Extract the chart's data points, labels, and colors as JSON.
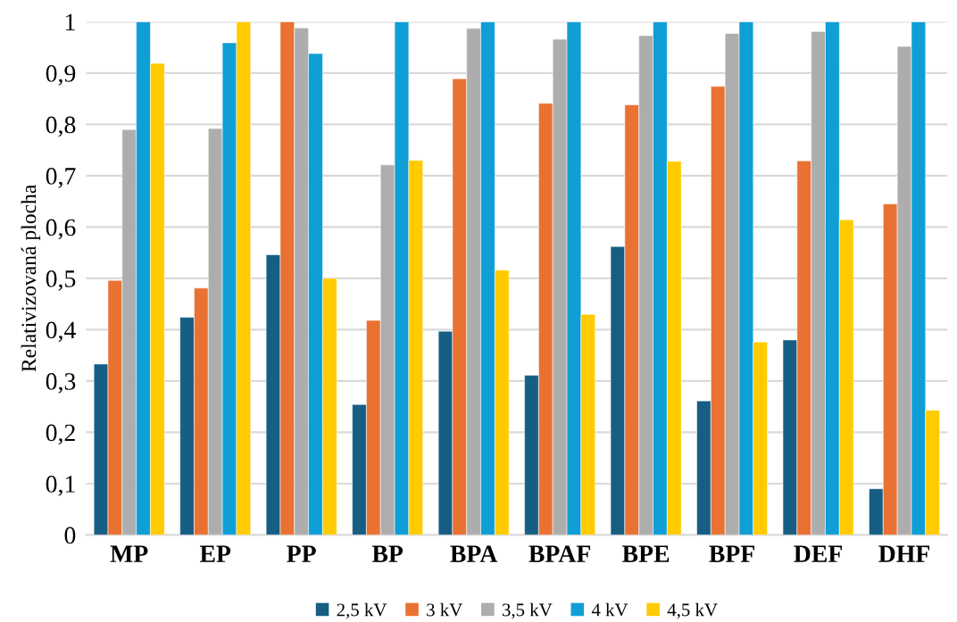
{
  "chart_data": {
    "type": "bar",
    "ylabel": "Relativizovaná plocha",
    "categories": [
      "MP",
      "EP",
      "PP",
      "BP",
      "BPA",
      "BPAF",
      "BPE",
      "BPF",
      "DEF",
      "DHF"
    ],
    "series": [
      {
        "name": "2,5 kV",
        "color": "#165e83",
        "values": [
          0.333,
          0.424,
          0.546,
          0.254,
          0.397,
          0.311,
          0.562,
          0.261,
          0.38,
          0.09
        ]
      },
      {
        "name": "3 kV",
        "color": "#e97132",
        "values": [
          0.496,
          0.481,
          1.0,
          0.418,
          0.889,
          0.841,
          0.838,
          0.874,
          0.729,
          0.645
        ]
      },
      {
        "name": "3,5 kV",
        "color": "#adadad",
        "values": [
          0.79,
          0.792,
          0.988,
          0.721,
          0.987,
          0.966,
          0.973,
          0.977,
          0.981,
          0.952
        ]
      },
      {
        "name": "4 kV",
        "color": "#0f9ed5",
        "values": [
          1.0,
          0.959,
          0.938,
          1.0,
          1.0,
          1.0,
          1.0,
          1.0,
          1.0,
          1.0
        ]
      },
      {
        "name": "4,5 kV",
        "color": "#ffcb00",
        "values": [
          0.919,
          1.0,
          0.5,
          0.73,
          0.516,
          0.43,
          0.728,
          0.376,
          0.614,
          0.243
        ]
      }
    ],
    "ylim": [
      0,
      1
    ],
    "yticks": [
      {
        "value": 0,
        "label": "0"
      },
      {
        "value": 0.1,
        "label": "0,1"
      },
      {
        "value": 0.2,
        "label": "0,2"
      },
      {
        "value": 0.3,
        "label": "0,3"
      },
      {
        "value": 0.4,
        "label": "0,4"
      },
      {
        "value": 0.5,
        "label": "0,5"
      },
      {
        "value": 0.6,
        "label": "0,6"
      },
      {
        "value": 0.7,
        "label": "0,7"
      },
      {
        "value": 0.8,
        "label": "0,8"
      },
      {
        "value": 0.9,
        "label": "0,9"
      },
      {
        "value": 1,
        "label": "1"
      }
    ],
    "grid": "y",
    "legend": "bottom"
  }
}
